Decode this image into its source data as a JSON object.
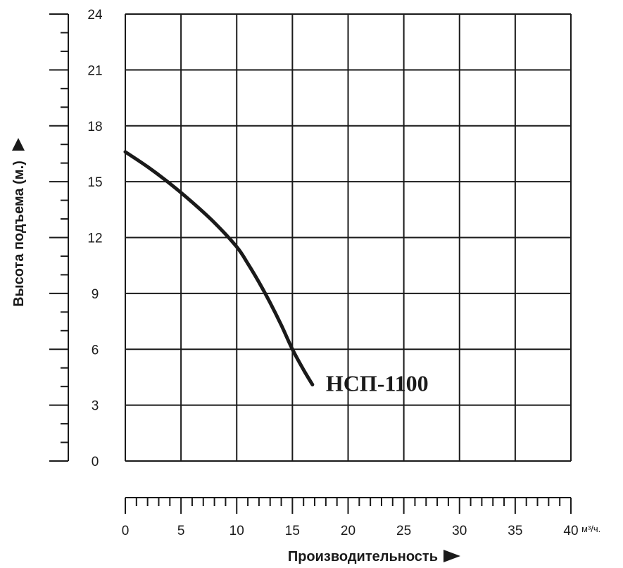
{
  "chart_data": {
    "type": "line",
    "title": "",
    "xlabel": "Производительность",
    "ylabel": "Высота подъема (м.)",
    "x_unit": "м³/ч.",
    "xlim": [
      0,
      40
    ],
    "ylim": [
      0,
      24
    ],
    "x_ticks": [
      0,
      5,
      10,
      15,
      20,
      25,
      30,
      35,
      40
    ],
    "y_ticks": [
      0,
      3,
      6,
      9,
      12,
      15,
      18,
      21,
      24
    ],
    "x_tick_labels": [
      "0",
      "5",
      "10",
      "15",
      "20",
      "25",
      "30",
      "35",
      "40"
    ],
    "y_tick_labels": [
      "0",
      "3",
      "6",
      "9",
      "12",
      "15",
      "18",
      "21",
      "24"
    ],
    "grid": true,
    "series": [
      {
        "name": "НСП-1100",
        "color": "#1a1a1a",
        "x": [
          0,
          2,
          4,
          6,
          8,
          10,
          11,
          12,
          13,
          14,
          15,
          16,
          16.8
        ],
        "y": [
          16.6,
          15.8,
          14.9,
          13.9,
          12.8,
          11.5,
          10.6,
          9.6,
          8.5,
          7.3,
          6.0,
          4.9,
          4.1
        ]
      }
    ]
  }
}
